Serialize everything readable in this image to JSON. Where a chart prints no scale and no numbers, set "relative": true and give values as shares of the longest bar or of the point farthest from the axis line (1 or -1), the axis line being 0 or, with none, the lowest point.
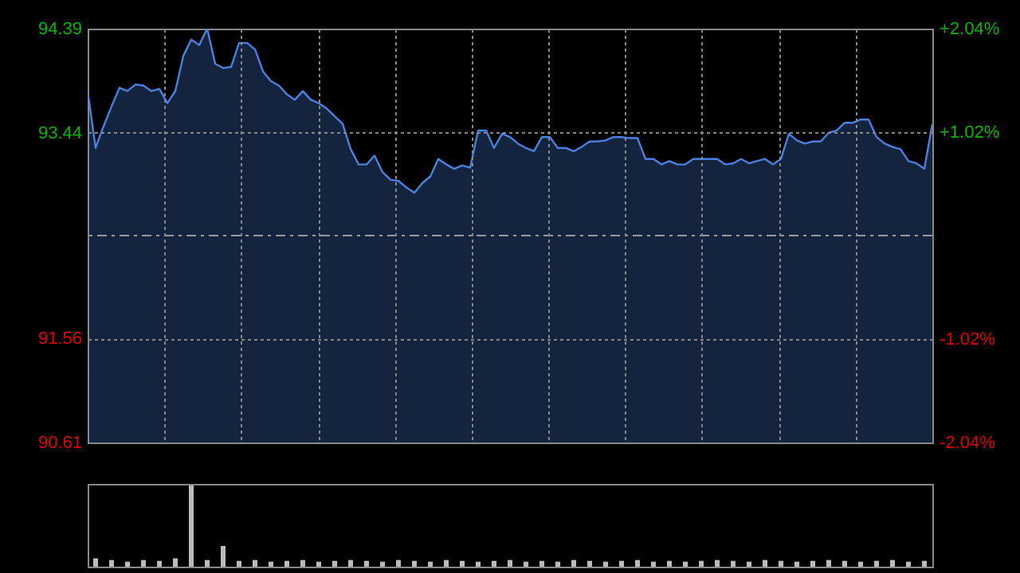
{
  "chart_data": [
    {
      "type": "line",
      "categories": [
        null,
        null,
        null,
        null,
        null,
        null,
        null,
        null,
        null,
        null,
        null,
        null,
        null,
        null,
        null,
        null,
        null,
        null,
        null,
        null,
        null,
        null,
        null,
        null,
        null,
        null,
        null,
        null,
        null,
        null,
        null,
        null,
        null,
        null,
        null,
        null,
        null,
        null,
        null,
        null,
        null,
        null,
        null,
        null,
        null,
        null,
        null,
        null,
        null,
        null,
        null,
        null,
        null,
        null,
        null,
        null,
        null,
        null,
        null,
        null,
        null,
        null,
        null,
        null,
        null,
        null,
        null,
        null,
        null,
        null,
        null,
        null,
        null,
        null,
        null,
        null,
        null,
        null,
        null,
        null,
        null,
        null,
        null,
        null,
        null,
        null,
        null,
        null,
        null,
        null,
        null,
        null,
        null,
        null,
        null,
        null,
        null,
        null,
        null,
        null,
        null,
        null,
        null,
        null,
        null,
        null,
        null
      ],
      "values": [
        93.82,
        93.3,
        93.5,
        93.68,
        93.85,
        93.82,
        93.88,
        93.87,
        93.82,
        93.84,
        93.71,
        93.82,
        94.14,
        94.29,
        94.24,
        94.39,
        94.07,
        94.03,
        94.04,
        94.26,
        94.26,
        94.2,
        94.0,
        93.91,
        93.87,
        93.79,
        93.74,
        93.82,
        93.74,
        93.71,
        93.66,
        93.59,
        93.52,
        93.29,
        93.15,
        93.15,
        93.23,
        93.08,
        93.01,
        93.0,
        92.94,
        92.89,
        92.98,
        93.04,
        93.2,
        93.15,
        93.11,
        93.14,
        93.12,
        93.46,
        93.46,
        93.3,
        93.43,
        93.4,
        93.34,
        93.3,
        93.27,
        93.4,
        93.4,
        93.3,
        93.3,
        93.27,
        93.31,
        93.36,
        93.36,
        93.37,
        93.4,
        93.4,
        93.39,
        93.39,
        93.2,
        93.2,
        93.15,
        93.18,
        93.15,
        93.15,
        93.2,
        93.2,
        93.2,
        93.2,
        93.15,
        93.16,
        93.2,
        93.16,
        93.18,
        93.2,
        93.15,
        93.2,
        93.43,
        93.37,
        93.34,
        93.36,
        93.36,
        93.44,
        93.46,
        93.53,
        93.53,
        93.56,
        93.56,
        93.4,
        93.34,
        93.31,
        93.29,
        93.18,
        93.16,
        93.11,
        93.52
      ],
      "color": "#4a80e0",
      "ylim": [
        90.61,
        94.39
      ],
      "yticks": [
        90.61,
        91.56,
        93.44,
        94.39
      ],
      "y2lim": [
        -2.04,
        2.04
      ],
      "y2ticks": [
        {
          "value": -2.04,
          "label": "-2.04%"
        },
        {
          "value": -1.02,
          "label": "-1.02%"
        },
        {
          "value": 1.02,
          "label": "+1.02%"
        },
        {
          "value": 2.04,
          "label": "+2.04%"
        }
      ],
      "ref_lines": [
        {
          "axis": "y",
          "value": 92.5,
          "color": "#999999",
          "line_style": "dashed"
        }
      ],
      "grid": true
    },
    {
      "type": "bar",
      "relative": true,
      "color": "#bbbbbb",
      "categories": [
        null,
        null,
        null,
        null,
        null,
        null,
        null,
        null,
        null,
        null,
        null,
        null,
        null,
        null,
        null,
        null,
        null,
        null,
        null,
        null,
        null,
        null,
        null,
        null,
        null,
        null,
        null,
        null,
        null,
        null,
        null,
        null,
        null,
        null,
        null,
        null,
        null,
        null,
        null,
        null,
        null,
        null,
        null,
        null,
        null,
        null,
        null,
        null,
        null,
        null,
        null,
        null,
        null
      ],
      "values": [
        0.1,
        0.08,
        0.06,
        0.08,
        0.07,
        0.1,
        1,
        0.08,
        0.25,
        0.07,
        0.08,
        0.06,
        0.07,
        0.08,
        0.06,
        0.07,
        0.08,
        0.07,
        0.06,
        0.08,
        0.07,
        0.06,
        0.08,
        0.07,
        0.06,
        0.07,
        0.08,
        0.06,
        0.07,
        0.06,
        0.08,
        0.07,
        0.06,
        0.07,
        0.08,
        0.06,
        0.07,
        0.06,
        0.07,
        0.08,
        0.07,
        0.06,
        0.08,
        0.07,
        0.06,
        0.07,
        0.08,
        0.07,
        0.06,
        0.07,
        0.08,
        0.06,
        0.07
      ]
    }
  ]
}
